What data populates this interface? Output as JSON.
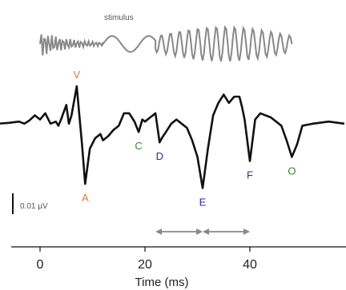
{
  "chart_data": {
    "type": "line",
    "xlabel": "Time (ms)",
    "xlim": [
      -8,
      58
    ],
    "x_ticks": [
      0,
      20,
      40
    ],
    "stimulus_label": "stimulus",
    "scale_bar_label": "0.01 µV",
    "series": [
      {
        "color": "#111111",
        "x": [
          -8,
          -6,
          -4,
          -3,
          -2,
          -1,
          0,
          1,
          2,
          3,
          3.5,
          4,
          5,
          5.5,
          6,
          7,
          8,
          8.6,
          9.5,
          10.5,
          11.5,
          12,
          13,
          14,
          15,
          16,
          17,
          18,
          18.8,
          19.5,
          20,
          21,
          22,
          22.8,
          23.2,
          24,
          25,
          26,
          27,
          28,
          29,
          30,
          31,
          32,
          33,
          34,
          35,
          36,
          37,
          38,
          38.5,
          39,
          40,
          41,
          42,
          43,
          44,
          45,
          46,
          47,
          48,
          49,
          50,
          52,
          55,
          58
        ],
        "y": [
          0.1,
          0.12,
          0.15,
          0.1,
          0.18,
          0.3,
          0.2,
          0.35,
          0.1,
          0.15,
          0.05,
          0.2,
          0.55,
          0.1,
          0.3,
          1.0,
          -0.4,
          -1.35,
          -0.5,
          -0.25,
          -0.15,
          -0.3,
          -0.2,
          -0.05,
          0.05,
          0.35,
          0.35,
          0.15,
          -0.1,
          0.2,
          0.15,
          0.25,
          0.35,
          -0.35,
          -0.25,
          -0.1,
          0.1,
          0.2,
          0.1,
          0.0,
          -0.3,
          -0.7,
          -1.45,
          -0.5,
          0.3,
          0.6,
          0.8,
          0.6,
          0.75,
          0.75,
          0.5,
          0.2,
          -0.8,
          0.2,
          0.35,
          0.3,
          0.25,
          0.15,
          0.05,
          -0.3,
          -0.7,
          -0.4,
          0.05,
          0.1,
          0.15,
          0.1
        ]
      }
    ],
    "peaks": [
      {
        "label": "V",
        "color": "#e07b39",
        "x": 7,
        "y": 1.0,
        "placement": "above"
      },
      {
        "label": "A",
        "color": "#e07b39",
        "x": 8.6,
        "y": -1.35,
        "placement": "below"
      },
      {
        "label": "C",
        "color": "#2e8b2e",
        "x": 18.8,
        "y": -0.1,
        "placement": "below"
      },
      {
        "label": "D",
        "color": "#2a2a9a",
        "x": 22.8,
        "y": -0.35,
        "placement": "below"
      },
      {
        "label": "E",
        "color": "#2a2a9a",
        "x": 31,
        "y": -1.45,
        "placement": "below"
      },
      {
        "label": "F",
        "color": "#2a2a9a",
        "x": 40,
        "y": -0.8,
        "placement": "below"
      },
      {
        "label": "O",
        "color": "#2e8b2e",
        "x": 48,
        "y": -0.7,
        "placement": "below"
      }
    ],
    "intervals": [
      {
        "from": 22,
        "to": 31
      },
      {
        "from": 31,
        "to": 40
      }
    ],
    "stimulus": {
      "color": "#888888",
      "segments": [
        {
          "type": "burst",
          "from": 0,
          "to": 12
        },
        {
          "type": "ramp",
          "from": 12,
          "to": 22
        },
        {
          "type": "oscillation",
          "from": 22,
          "to": 48
        }
      ]
    }
  }
}
